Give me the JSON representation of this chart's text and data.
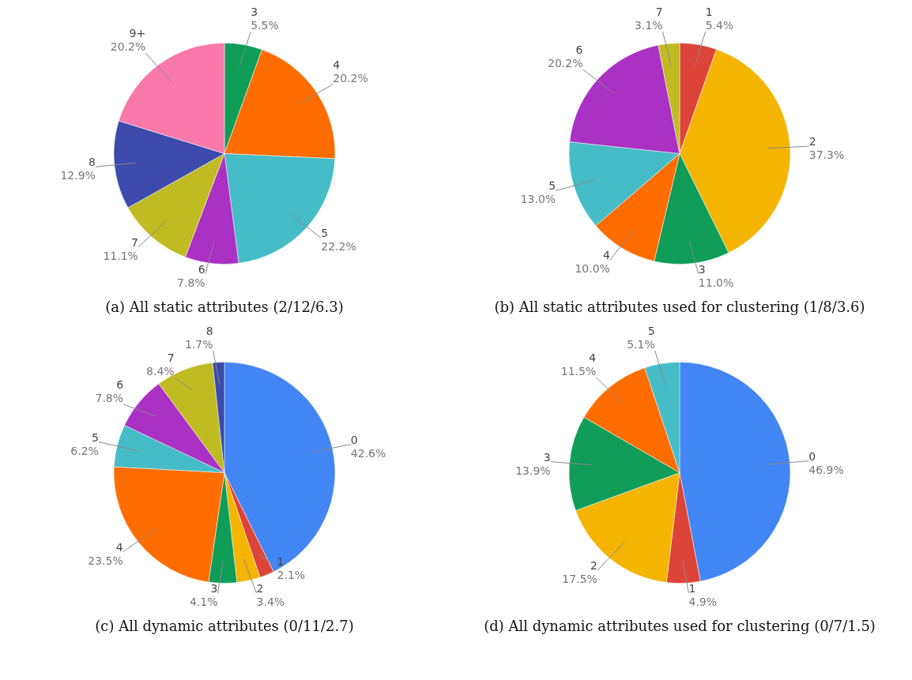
{
  "chart_data": [
    {
      "type": "pie",
      "title": "(a) All static attributes (2/12/6.3)",
      "categories": [
        "3",
        "4",
        "5",
        "6",
        "7",
        "8",
        "9+"
      ],
      "values": [
        5.5,
        20.2,
        22.2,
        7.8,
        11.1,
        12.9,
        20.2
      ],
      "value_labels": [
        "5.5%",
        "20.2%",
        "22.2%",
        "7.8%",
        "11.1%",
        "12.9%",
        "20.2%"
      ],
      "colors": [
        "#0f9d58",
        "#ff6d01",
        "#46bdc6",
        "#ab30c4",
        "#c0bb22",
        "#3b4aab",
        "#f878aa"
      ]
    },
    {
      "type": "pie",
      "title": "(b) All static attributes used for clustering (1/8/3.6)",
      "categories": [
        "1",
        "2",
        "3",
        "4",
        "5",
        "6",
        "7"
      ],
      "values": [
        5.4,
        37.3,
        11.0,
        10.0,
        13.0,
        20.2,
        3.1
      ],
      "value_labels": [
        "5.4%",
        "37.3%",
        "11.0%",
        "10.0%",
        "13.0%",
        "20.2%",
        "3.1%"
      ],
      "colors": [
        "#db4437",
        "#f4b400",
        "#0f9d58",
        "#ff6d01",
        "#46bdc6",
        "#ab30c4",
        "#c0bb22"
      ]
    },
    {
      "type": "pie",
      "title": "(c) All dynamic attributes (0/11/2.7)",
      "categories": [
        "0",
        "1",
        "2",
        "3",
        "4",
        "5",
        "6",
        "7",
        "8"
      ],
      "values": [
        42.6,
        2.1,
        3.4,
        4.1,
        23.5,
        6.2,
        7.8,
        8.4,
        1.7
      ],
      "value_labels": [
        "42.6%",
        "2.1%",
        "3.4%",
        "4.1%",
        "23.5%",
        "6.2%",
        "7.8%",
        "8.4%",
        "1.7%"
      ],
      "colors": [
        "#4285f4",
        "#db4437",
        "#f4b400",
        "#0f9d58",
        "#ff6d01",
        "#46bdc6",
        "#ab30c4",
        "#c0bb22",
        "#3b4aab"
      ]
    },
    {
      "type": "pie",
      "title": "(d) All dynamic attributes used for clustering (0/7/1.5)",
      "categories": [
        "0",
        "1",
        "2",
        "3",
        "4",
        "5"
      ],
      "values": [
        46.9,
        4.9,
        17.5,
        13.9,
        11.5,
        5.1
      ],
      "value_labels": [
        "46.9%",
        "4.9%",
        "17.5%",
        "13.9%",
        "11.5%",
        "5.1%"
      ],
      "colors": [
        "#4285f4",
        "#db4437",
        "#f4b400",
        "#0f9d58",
        "#ff6d01",
        "#46bdc6"
      ]
    }
  ]
}
